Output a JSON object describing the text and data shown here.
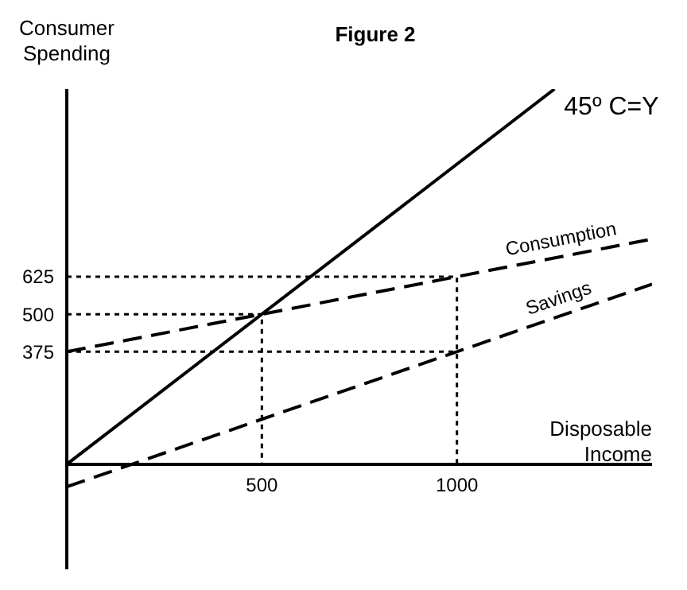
{
  "chart_data": {
    "type": "line",
    "title": "Figure 2",
    "xlabel": "Disposable Income",
    "ylabel": "Consumer Spending",
    "xlim": [
      0,
      1500
    ],
    "ylim": [
      -350,
      1250
    ],
    "xticks": [
      500,
      1000
    ],
    "yticks": [
      375,
      500,
      625
    ],
    "marker": "none",
    "series": [
      {
        "name": "45º C=Y",
        "color": "#000000",
        "line_style": "solid",
        "x": [
          0,
          1250
        ],
        "values": [
          0,
          1250
        ]
      },
      {
        "name": "Consumption",
        "color": "#000000",
        "line_style": "dashed",
        "x": [
          0,
          1500
        ],
        "values": [
          375,
          750
        ]
      },
      {
        "name": "Savings",
        "color": "#000000",
        "line_style": "dashed",
        "x": [
          0,
          1500
        ],
        "values": [
          -75,
          600
        ]
      },
      {
        "color": "#000000",
        "line_style": "dotted",
        "x": [
          0,
          1000,
          1000
        ],
        "values": [
          625,
          625,
          0
        ]
      },
      {
        "color": "#000000",
        "line_style": "dotted",
        "x": [
          0,
          500,
          500
        ],
        "values": [
          500,
          500,
          0
        ]
      },
      {
        "color": "#000000",
        "line_style": "dotted",
        "x": [
          0,
          1000
        ],
        "values": [
          375,
          375
        ]
      }
    ]
  }
}
